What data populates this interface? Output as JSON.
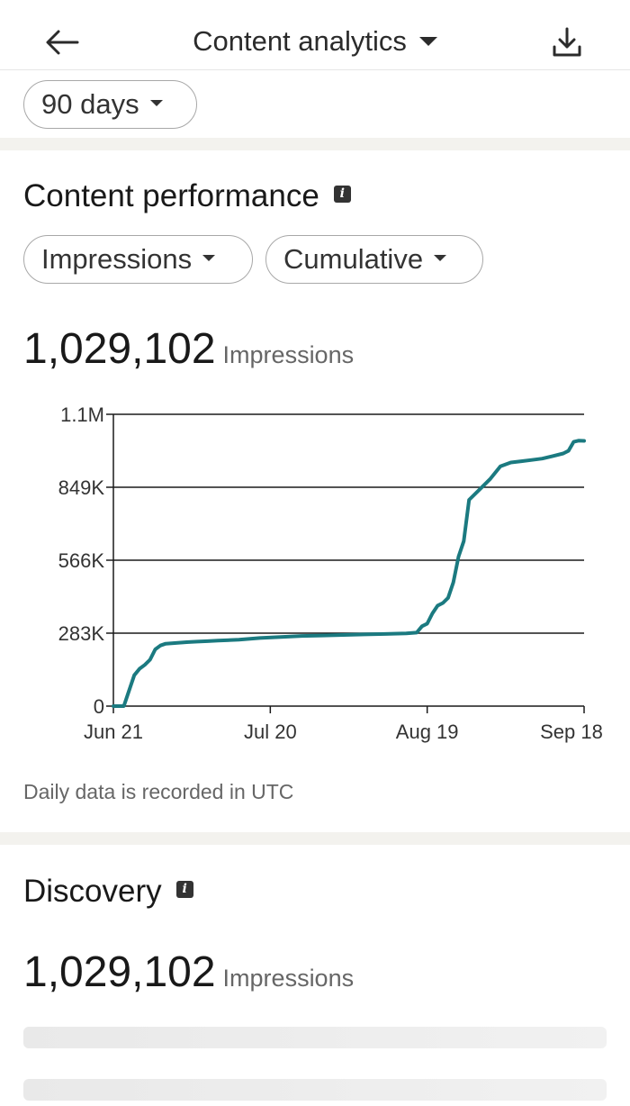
{
  "header": {
    "title": "Content analytics",
    "back_icon": "arrow-left-icon",
    "download_icon": "download-icon"
  },
  "filters": {
    "range": "90 days",
    "metric": "Impressions",
    "mode": "Cumulative"
  },
  "performance": {
    "title": "Content performance",
    "total": "1,029,102",
    "unit": "Impressions",
    "footnote": "Daily data is recorded in UTC"
  },
  "discovery": {
    "title": "Discovery",
    "total": "1,029,102",
    "unit": "Impressions"
  },
  "colors": {
    "line": "#1b7a80",
    "divider": "#f3f2ee"
  },
  "chart_data": {
    "type": "line",
    "x_tick_labels": [
      "Jun 21",
      "Jul 20",
      "Aug 19",
      "Sep 18"
    ],
    "y_tick_labels": [
      "0",
      "283K",
      "566K",
      "849K",
      "1.1M"
    ],
    "ylim": [
      0,
      1132000
    ],
    "grid": true,
    "series": [
      {
        "x": [
          0,
          2,
          3,
          4,
          5,
          6,
          7,
          8,
          9,
          10,
          12,
          14,
          16,
          18,
          20,
          24,
          28,
          32,
          36,
          40,
          44,
          48,
          52,
          56,
          58,
          59,
          60,
          61,
          62,
          63,
          64,
          65,
          66,
          67,
          68,
          70,
          72,
          74,
          76,
          78,
          80,
          82,
          84,
          86,
          87,
          88,
          89,
          90
        ],
        "y": [
          0,
          0,
          60000,
          120000,
          145000,
          160000,
          180000,
          220000,
          235000,
          242000,
          245000,
          248000,
          250000,
          252000,
          254000,
          258000,
          264000,
          268000,
          272000,
          274000,
          276000,
          278000,
          280000,
          282000,
          285000,
          310000,
          320000,
          360000,
          390000,
          400000,
          420000,
          480000,
          580000,
          640000,
          800000,
          840000,
          880000,
          930000,
          945000,
          950000,
          955000,
          960000,
          970000,
          980000,
          990000,
          1025000,
          1030000,
          1029102
        ]
      }
    ]
  }
}
